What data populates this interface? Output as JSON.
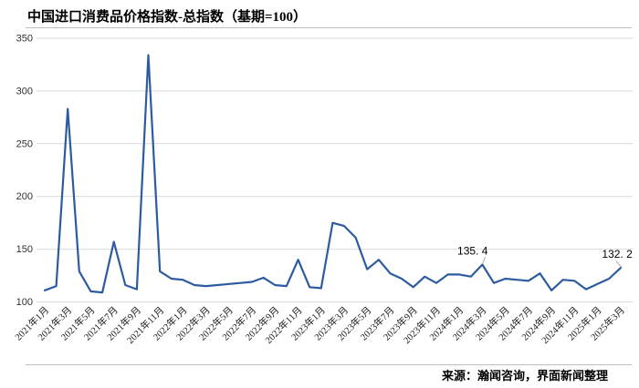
{
  "title": "中国进口消费品价格指数-总指数（基期=100）",
  "source": "来源：瀚闻咨询，界面新闻整理",
  "colors": {
    "line": "#2d5ba0",
    "gridline": "#d9d9d9",
    "frame_rule": "#bfbfbf",
    "leader": "#a9a9a9",
    "background": "#ffffff"
  },
  "chart_data": {
    "type": "line",
    "title": "中国进口消费品价格指数-总指数（基期=100）",
    "xlabel": "",
    "ylabel": "",
    "ylim": [
      100,
      350
    ],
    "y_ticks": [
      350,
      300,
      250,
      200,
      150,
      100
    ],
    "grid": "horizontal",
    "legend": "none",
    "x": [
      "2021年1月",
      "2021年2月",
      "2021年3月",
      "2021年4月",
      "2021年5月",
      "2021年6月",
      "2021年7月",
      "2021年8月",
      "2021年9月",
      "2021年10月",
      "2021年11月",
      "2021年12月",
      "2022年1月",
      "2022年2月",
      "2022年3月",
      "2022年4月",
      "2022年5月",
      "2022年6月",
      "2022年7月",
      "2022年8月",
      "2022年9月",
      "2022年10月",
      "2022年11月",
      "2022年12月",
      "2023年1月",
      "2023年2月",
      "2023年3月",
      "2023年4月",
      "2023年5月",
      "2023年6月",
      "2023年7月",
      "2023年8月",
      "2023年9月",
      "2023年10月",
      "2023年11月",
      "2023年12月",
      "2024年1月",
      "2024年2月",
      "2024年3月",
      "2024年4月",
      "2024年5月",
      "2024年6月",
      "2024年7月",
      "2024年8月",
      "2024年9月",
      "2024年10月",
      "2024年11月",
      "2024年12月",
      "2025年1月",
      "2025年2月",
      "2025年3月"
    ],
    "values": [
      111,
      115,
      283,
      129,
      110,
      109,
      157,
      116,
      112,
      334,
      129,
      122,
      121,
      116,
      115,
      116,
      117,
      118,
      119,
      123,
      116,
      115,
      140,
      114,
      113,
      175,
      172,
      161,
      131,
      140,
      127,
      122,
      114,
      124,
      118,
      126,
      126,
      124,
      135.4,
      118,
      122,
      121,
      120,
      127,
      111,
      121,
      120,
      112,
      117,
      122,
      132.2
    ],
    "x_tick_labels_shown": [
      "2021年1月",
      "2021年3月",
      "2021年5月",
      "2021年7月",
      "2021年9月",
      "2021年11月",
      "2022年1月",
      "2022年3月",
      "2022年5月",
      "2022年7月",
      "2022年9月",
      "2022年11月",
      "2023年1月",
      "2023年3月",
      "2023年5月",
      "2023年7月",
      "2023年9月",
      "2023年11月",
      "2024年1月",
      "2024年3月",
      "2024年5月",
      "2024年7月",
      "2024年9月",
      "2024年11月",
      "2025年1月",
      "2025年3月"
    ],
    "annotations": [
      {
        "x": "2024年3月",
        "value": 135.4,
        "label": "135. 4"
      },
      {
        "x": "2025年3月",
        "value": 132.2,
        "label": "132. 2"
      }
    ]
  }
}
